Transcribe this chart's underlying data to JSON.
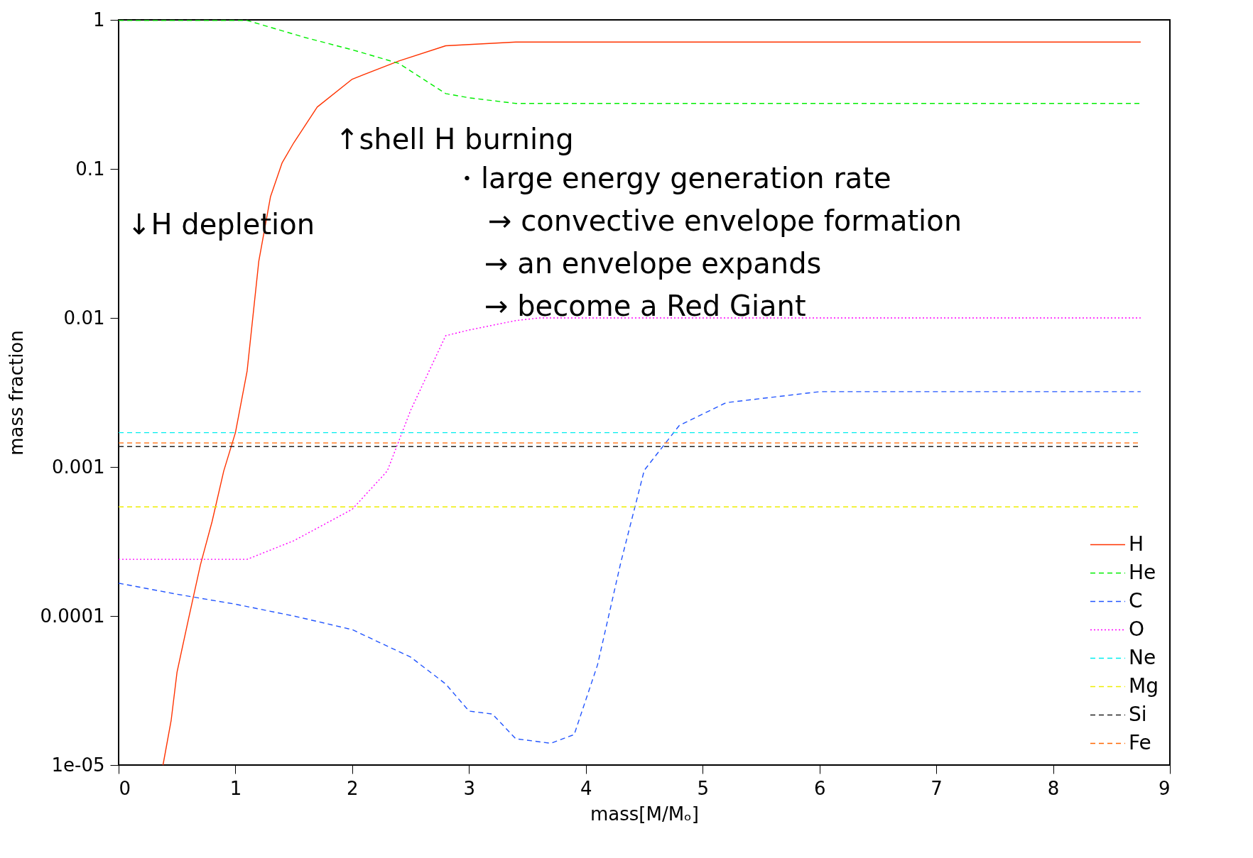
{
  "chart_data": {
    "type": "line",
    "xlabel": "mass[M/Mₒ]",
    "ylabel": "mass fraction",
    "log": "y",
    "xlim": [
      0,
      9
    ],
    "xticks": [
      0,
      1,
      2,
      3,
      4,
      5,
      6,
      7,
      8,
      9
    ],
    "ylim": [
      1e-05,
      1
    ],
    "yticks": [
      {
        "value": 1e-05,
        "label": "1e-05"
      },
      0.0001,
      0.001,
      0.01,
      0.1,
      1
    ],
    "grid": false,
    "legend": "bottom right",
    "marker": "none",
    "annotations": [
      "↑shell H burning",
      "・large energy generation rate",
      "→ convective envelope formation",
      "→ an envelope expands",
      "→ become a Red Giant",
      "↓H depletion"
    ],
    "series": [
      {
        "name": "H",
        "color": "#ff3300",
        "line_style": "solid",
        "x": [
          0.38,
          0.45,
          0.5,
          0.6,
          0.7,
          0.8,
          0.9,
          1.0,
          1.1,
          1.2,
          1.3,
          1.4,
          1.5,
          1.7,
          2.0,
          2.4,
          2.8,
          3.4,
          8.75
        ],
        "values": [
          1e-05,
          2e-05,
          4.2e-05,
          9.7e-05,
          0.00022,
          0.00043,
          0.00094,
          0.0017,
          0.0044,
          0.024,
          0.065,
          0.11,
          0.15,
          0.26,
          0.4,
          0.53,
          0.67,
          0.71,
          0.71
        ]
      },
      {
        "name": "He",
        "color": "#00ee00",
        "line_style": "dashed",
        "x": [
          0,
          0.5,
          1.1,
          1.2,
          1.6,
          2.0,
          2.4,
          2.8,
          3.0,
          3.4,
          8.75
        ],
        "values": [
          0.99,
          0.99,
          0.99,
          0.94,
          0.76,
          0.63,
          0.51,
          0.32,
          0.3,
          0.275,
          0.275
        ]
      },
      {
        "name": "C",
        "color": "#2255ff",
        "line_style": "dashed",
        "x": [
          0,
          0.5,
          1.0,
          1.5,
          2.0,
          2.5,
          2.8,
          3.0,
          3.2,
          3.4,
          3.7,
          3.9,
          4.1,
          4.3,
          4.5,
          4.8,
          5.2,
          6.0,
          8.75
        ],
        "values": [
          0.000166,
          0.00014,
          0.00012,
          0.0001,
          8.1e-05,
          5.3e-05,
          3.5e-05,
          2.3e-05,
          2.2e-05,
          1.5e-05,
          1.4e-05,
          1.6e-05,
          4.7e-05,
          0.00023,
          0.00095,
          0.0019,
          0.0027,
          0.0032,
          0.0032
        ]
      },
      {
        "name": "O",
        "color": "#ff00ff",
        "line_style": "dotted",
        "x": [
          0,
          1.1,
          1.5,
          2.0,
          2.3,
          2.5,
          2.8,
          3.0,
          3.4,
          3.6,
          8.75
        ],
        "values": [
          0.00024,
          0.00024,
          0.00032,
          0.00052,
          0.00094,
          0.0024,
          0.0076,
          0.0083,
          0.0096,
          0.01,
          0.01
        ]
      },
      {
        "name": "Ne",
        "color": "#00eeee",
        "line_style": "dashed",
        "x": [
          0,
          8.75
        ],
        "values": [
          0.0017,
          0.0017
        ]
      },
      {
        "name": "Mg",
        "color": "#eeee00",
        "line_style": "dashed",
        "x": [
          0,
          8.75
        ],
        "values": [
          0.00054,
          0.00054
        ]
      },
      {
        "name": "Si",
        "color": "#222222",
        "line_style": "dashed",
        "x": [
          0,
          8.75
        ],
        "values": [
          0.00137,
          0.00137
        ]
      },
      {
        "name": "Fe",
        "color": "#ff6600",
        "line_style": "dashed",
        "x": [
          0,
          8.75
        ],
        "values": [
          0.00145,
          0.00145
        ]
      }
    ]
  }
}
